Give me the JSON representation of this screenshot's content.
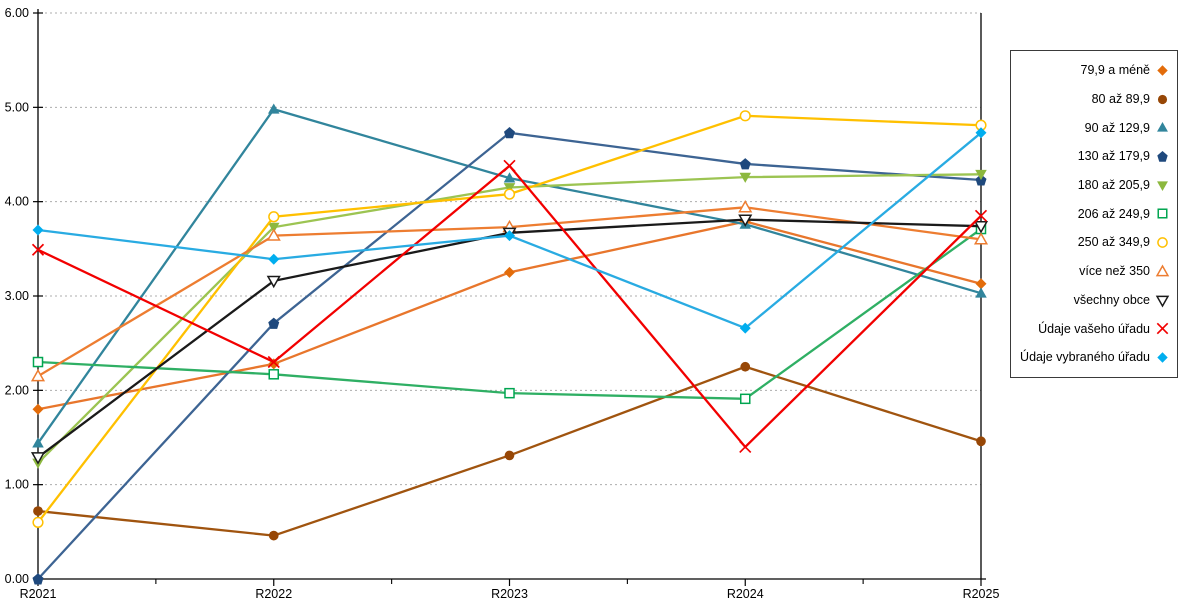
{
  "chart_data": {
    "type": "line",
    "title": "",
    "xlabel": "",
    "ylabel": "",
    "categories": [
      "R2021",
      "R2022",
      "R2023",
      "R2024",
      "R2025"
    ],
    "ylim": [
      0,
      6
    ],
    "y_ticks": [
      "0.00",
      "1.00",
      "2.00",
      "3.00",
      "4.00",
      "5.00",
      "6.00"
    ],
    "grid": "horizontal dotted lines at each 1.00",
    "minor_x_ticks_between_categories": true,
    "legend_position": "right",
    "axis_color": "#000000",
    "grid_color": "#ADADAD",
    "series": [
      {
        "name": "79,9 a méně",
        "marker": "diamond",
        "filled": true,
        "color": "#E36C0A",
        "line_color": "#E8762C",
        "values": [
          1.8,
          2.28,
          3.25,
          3.79,
          3.13
        ]
      },
      {
        "name": "80 až 89,9",
        "marker": "circle",
        "filled": true,
        "color": "#974706",
        "line_color": "#A0540F",
        "values": [
          0.72,
          0.46,
          1.31,
          2.25,
          1.46
        ]
      },
      {
        "name": "90 až 129,9",
        "marker": "triangle-up",
        "filled": true,
        "color": "#31859C",
        "line_color": "#31859C",
        "values": [
          1.44,
          4.98,
          4.25,
          3.76,
          3.03
        ]
      },
      {
        "name": "130 až 179,9",
        "marker": "pentagon",
        "filled": true,
        "color": "#1F497D",
        "line_color": "#3D6493",
        "values": [
          0.0,
          2.71,
          4.73,
          4.4,
          4.23
        ]
      },
      {
        "name": "180 až 205,9",
        "marker": "triangle-down",
        "filled": true,
        "color": "#8CB83E",
        "line_color": "#9CC452",
        "values": [
          1.23,
          3.73,
          4.15,
          4.26,
          4.29
        ]
      },
      {
        "name": "206 až 249,9",
        "marker": "square",
        "filled": false,
        "color": "#00A550",
        "line_color": "#2FAF64",
        "values": [
          2.3,
          2.17,
          1.97,
          1.91,
          3.71
        ]
      },
      {
        "name": "250 až 349,9",
        "marker": "circle",
        "filled": false,
        "color": "#FFC000",
        "line_color": "#FFC000",
        "values": [
          0.6,
          3.84,
          4.08,
          4.91,
          4.81
        ]
      },
      {
        "name": "více než 350",
        "marker": "triangle-up",
        "filled": false,
        "color": "#ED7D31",
        "line_color": "#ED7D31",
        "values": [
          2.15,
          3.64,
          3.73,
          3.94,
          3.6
        ]
      },
      {
        "name": "všechny obce",
        "marker": "triangle-down",
        "filled": false,
        "color": "#1A1A1A",
        "line_color": "#1A1A1A",
        "values": [
          1.29,
          3.16,
          3.67,
          3.81,
          3.74
        ]
      },
      {
        "name": "Údaje vašeho úřadu",
        "marker": "x",
        "filled": false,
        "color": "#F20000",
        "line_color": "#F20000",
        "values": [
          3.49,
          2.3,
          4.38,
          1.4,
          3.85
        ]
      },
      {
        "name": "Údaje vybraného úřadu",
        "marker": "diamond",
        "filled": true,
        "color": "#00AEEF",
        "line_color": "#29ABE2",
        "values": [
          3.7,
          3.39,
          3.64,
          2.66,
          4.73
        ]
      }
    ]
  }
}
